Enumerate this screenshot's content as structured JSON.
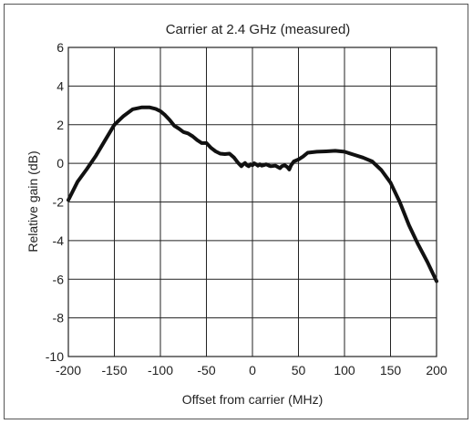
{
  "chart_data": {
    "type": "line",
    "title": "Carrier at 2.4 GHz (measured)",
    "xlabel": "Offset from carrier (MHz)",
    "ylabel": "Relative gain (dB)",
    "xlim": [
      -200,
      200
    ],
    "ylim": [
      -10,
      6
    ],
    "xticks": [
      -200,
      -150,
      -100,
      -50,
      0,
      50,
      100,
      150,
      200
    ],
    "yticks": [
      -10,
      -8,
      -6,
      -4,
      -2,
      0,
      2,
      4,
      6
    ],
    "grid": true,
    "series": [
      {
        "color": "#111111",
        "x": [
          -200,
          -190,
          -180,
          -170,
          -160,
          -150,
          -140,
          -130,
          -120,
          -112,
          -105,
          -100,
          -95,
          -90,
          -85,
          -80,
          -75,
          -70,
          -65,
          -60,
          -55,
          -50,
          -45,
          -40,
          -35,
          -30,
          -25,
          -20,
          -16,
          -12,
          -10,
          -8,
          -6,
          -4,
          -2,
          0,
          2,
          4,
          6,
          8,
          10,
          12,
          15,
          18,
          20,
          25,
          28,
          30,
          32,
          35,
          38,
          40,
          42,
          45,
          50,
          55,
          60,
          70,
          80,
          90,
          100,
          110,
          120,
          130,
          140,
          150,
          160,
          170,
          180,
          190,
          200
        ],
        "values": [
          -1.9,
          -0.95,
          -0.3,
          0.4,
          1.2,
          2.0,
          2.45,
          2.8,
          2.9,
          2.9,
          2.82,
          2.7,
          2.5,
          2.25,
          1.95,
          1.8,
          1.62,
          1.55,
          1.4,
          1.2,
          1.05,
          1.05,
          0.8,
          0.62,
          0.5,
          0.48,
          0.5,
          0.3,
          0.05,
          -0.15,
          -0.05,
          0.02,
          -0.1,
          -0.15,
          -0.05,
          -0.1,
          0.0,
          -0.05,
          -0.12,
          -0.05,
          -0.12,
          -0.1,
          -0.05,
          -0.12,
          -0.15,
          -0.12,
          -0.2,
          -0.25,
          -0.15,
          -0.1,
          -0.2,
          -0.32,
          -0.1,
          0.1,
          0.2,
          0.35,
          0.55,
          0.6,
          0.62,
          0.65,
          0.6,
          0.45,
          0.3,
          0.1,
          -0.35,
          -1.0,
          -2.0,
          -3.2,
          -4.2,
          -5.1,
          -6.1
        ]
      }
    ]
  }
}
